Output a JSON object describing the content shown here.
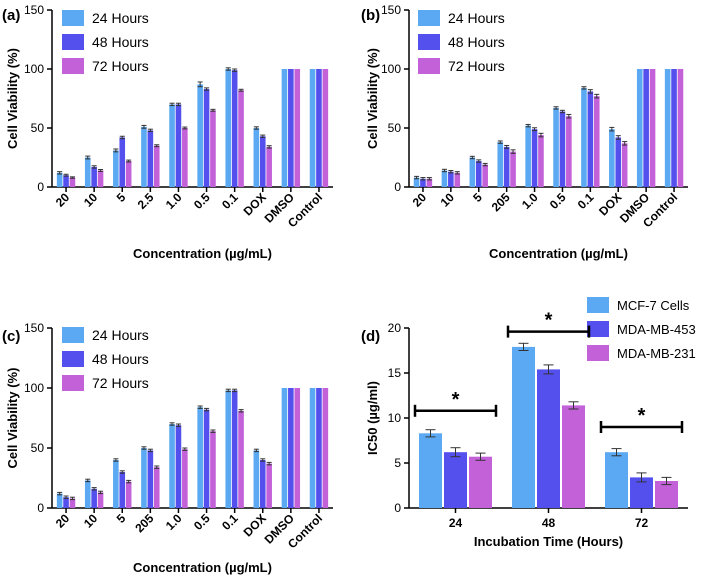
{
  "colors": {
    "series_1": "#5aa9f2",
    "series_2": "#5350ee",
    "series_3": "#c361d9",
    "axis": "#000000",
    "error": "#333333"
  },
  "chart_data": [
    {
      "id": "a",
      "panel_label": "(a)",
      "type": "bar",
      "title": "",
      "xlabel": "Concentration (µg/mL)",
      "ylabel": "Cell Viability (%)",
      "ylim": [
        0,
        150
      ],
      "yticks": [
        0,
        50,
        100,
        150
      ],
      "legend": "top-left",
      "categories": [
        "20",
        "10",
        "5",
        "2.5",
        "1.0",
        "0.5",
        "0.1",
        "DOX",
        "DMSO",
        "Control"
      ],
      "series": [
        {
          "name": "24 Hours",
          "values": [
            12,
            25,
            31,
            51,
            70,
            87,
            100,
            50,
            100,
            100
          ],
          "errors": [
            1,
            1.2,
            1.2,
            1.2,
            1,
            2,
            1,
            1,
            0,
            0
          ]
        },
        {
          "name": "48 Hours",
          "values": [
            10,
            17,
            42,
            48,
            70,
            83,
            99,
            43,
            100,
            100
          ],
          "errors": [
            0.8,
            1,
            1,
            1,
            1,
            1,
            1,
            1,
            0,
            0
          ]
        },
        {
          "name": "72 Hours",
          "values": [
            8,
            14,
            22,
            35,
            50,
            65,
            82,
            34,
            100,
            100
          ],
          "errors": [
            0.6,
            0.8,
            0.8,
            0.8,
            0.8,
            0.8,
            0.8,
            1,
            0,
            0
          ]
        }
      ]
    },
    {
      "id": "b",
      "panel_label": "(b)",
      "type": "bar",
      "title": "",
      "xlabel": "Concentration (µg/mL)",
      "ylabel": "Cell Viability (%)",
      "ylim": [
        0,
        150
      ],
      "yticks": [
        0,
        50,
        100,
        150
      ],
      "legend": "top-left",
      "categories": [
        "20",
        "10",
        "5",
        "205",
        "1.0",
        "0.5",
        "0.1",
        "DOX",
        "DMSO",
        "Control"
      ],
      "series": [
        {
          "name": "24 Hours",
          "values": [
            8,
            14,
            25,
            38,
            52,
            67,
            84,
            49,
            100,
            100
          ],
          "errors": [
            1,
            1,
            1,
            1,
            1,
            1,
            1,
            1.5,
            0,
            0
          ]
        },
        {
          "name": "48 Hours",
          "values": [
            7,
            13,
            22,
            34,
            49,
            64,
            81,
            42,
            100,
            100
          ],
          "errors": [
            1,
            1,
            1,
            1.2,
            1.2,
            1,
            1.5,
            1.5,
            0,
            0
          ]
        },
        {
          "name": "72 Hours",
          "values": [
            7,
            12,
            19,
            30,
            44,
            60,
            77,
            37,
            100,
            100
          ],
          "errors": [
            1,
            1,
            1,
            1.5,
            1.5,
            1.5,
            1.5,
            1.5,
            0,
            0
          ]
        }
      ]
    },
    {
      "id": "c",
      "panel_label": "(c)",
      "type": "bar",
      "title": "",
      "xlabel": "Concentration (µg/mL)",
      "ylabel": "Cell Viability (%)",
      "ylim": [
        0,
        150
      ],
      "yticks": [
        0,
        50,
        100,
        150
      ],
      "legend": "top-left",
      "categories": [
        "20",
        "10",
        "5",
        "205",
        "1.0",
        "0.5",
        "0.1",
        "DOX",
        "DMSO",
        "Control"
      ],
      "series": [
        {
          "name": "24 Hours",
          "values": [
            12,
            23,
            40,
            50,
            70,
            84,
            98,
            48,
            100,
            100
          ],
          "errors": [
            1,
            1,
            1,
            1,
            1,
            1,
            1,
            1,
            0,
            0
          ]
        },
        {
          "name": "48 Hours",
          "values": [
            9,
            16,
            30,
            48,
            69,
            82,
            98,
            40,
            100,
            100
          ],
          "errors": [
            1,
            1,
            1,
            1,
            1,
            1,
            1,
            1,
            0,
            0
          ]
        },
        {
          "name": "72 Hours",
          "values": [
            8,
            13,
            22,
            34,
            49,
            64,
            81,
            37,
            100,
            100
          ],
          "errors": [
            1,
            1,
            1,
            1,
            1,
            1,
            1,
            1,
            0,
            0
          ]
        }
      ]
    },
    {
      "id": "d",
      "panel_label": "(d)",
      "type": "bar",
      "title": "",
      "xlabel": "Incubation Time (Hours)",
      "ylabel": "IC50  (µg/ml)",
      "ylim": [
        0,
        20
      ],
      "yticks": [
        0,
        5,
        10,
        15,
        20
      ],
      "legend": "top-right",
      "categories": [
        "24",
        "48",
        "72"
      ],
      "series": [
        {
          "name": "MCF-7 Cells",
          "values": [
            8.3,
            17.9,
            6.2
          ],
          "errors": [
            0.4,
            0.4,
            0.4
          ]
        },
        {
          "name": "MDA-MB-453",
          "values": [
            6.2,
            15.4,
            3.4
          ],
          "errors": [
            0.5,
            0.5,
            0.5
          ]
        },
        {
          "name": "MDA-MB-231",
          "values": [
            5.7,
            11.4,
            3.0
          ],
          "errors": [
            0.4,
            0.4,
            0.4
          ]
        }
      ],
      "annotations": [
        {
          "text": "*",
          "category": "24",
          "y": 10.8
        },
        {
          "text": "*",
          "category": "48",
          "y": 19.6
        },
        {
          "text": "*",
          "category": "72",
          "y": 9.0
        }
      ]
    }
  ]
}
